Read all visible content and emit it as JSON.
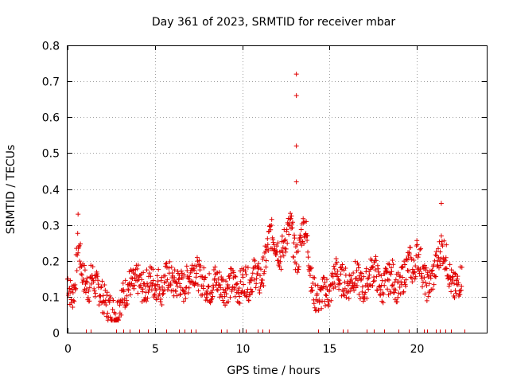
{
  "chart_data": {
    "type": "scatter",
    "title": "Day 361 of 2023, SRMTID for receiver mbar",
    "xlabel": "GPS time / hours",
    "ylabel": "SRMTID / TECUs",
    "xlim": [
      0,
      24
    ],
    "ylim": [
      0,
      0.8
    ],
    "xticks": [
      "0",
      "5",
      "10",
      "15",
      "20"
    ],
    "yticks": [
      "0",
      "0.1",
      "0.2",
      "0.3",
      "0.4",
      "0.5",
      "0.6",
      "0.7",
      "0.8"
    ],
    "grid": true,
    "marker": "+",
    "color": "#e00000",
    "series": [
      {
        "name": "SRMTID",
        "x": [
          0.0,
          0.2,
          0.4,
          0.6,
          0.8,
          1.0,
          1.2,
          1.4,
          1.6,
          1.8,
          2.0,
          2.2,
          2.4,
          2.6,
          2.8,
          3.0,
          3.2,
          3.4,
          3.6,
          3.8,
          4.0,
          4.2,
          4.4,
          4.6,
          4.8,
          5.0,
          5.2,
          5.4,
          5.6,
          5.8,
          6.0,
          6.2,
          6.4,
          6.6,
          6.8,
          7.0,
          7.2,
          7.4,
          7.6,
          7.8,
          8.0,
          8.2,
          8.4,
          8.6,
          8.8,
          9.0,
          9.2,
          9.4,
          9.6,
          9.8,
          10.0,
          10.2,
          10.4,
          10.6,
          10.8,
          11.0,
          11.2,
          11.4,
          11.6,
          11.8,
          12.0,
          12.2,
          12.4,
          12.6,
          12.8,
          13.0,
          13.2,
          13.4,
          13.6,
          13.8,
          14.0,
          14.2,
          14.4,
          14.6,
          14.8,
          15.0,
          15.2,
          15.4,
          15.6,
          15.8,
          16.0,
          16.2,
          16.4,
          16.6,
          16.8,
          17.0,
          17.2,
          17.4,
          17.6,
          17.8,
          18.0,
          18.2,
          18.4,
          18.6,
          18.8,
          19.0,
          19.2,
          19.4,
          19.6,
          19.8,
          20.0,
          20.2,
          20.4,
          20.6,
          20.8,
          21.0,
          21.2,
          21.4,
          21.6,
          21.8,
          22.0,
          22.2,
          22.4,
          22.6
        ],
        "y": [
          0.15,
          0.1,
          0.12,
          0.25,
          0.18,
          0.14,
          0.12,
          0.16,
          0.13,
          0.12,
          0.1,
          0.08,
          0.07,
          0.06,
          0.05,
          0.09,
          0.1,
          0.12,
          0.14,
          0.13,
          0.15,
          0.13,
          0.12,
          0.14,
          0.15,
          0.13,
          0.14,
          0.12,
          0.15,
          0.16,
          0.14,
          0.13,
          0.15,
          0.12,
          0.14,
          0.16,
          0.18,
          0.17,
          0.15,
          0.14,
          0.13,
          0.12,
          0.15,
          0.14,
          0.13,
          0.12,
          0.13,
          0.14,
          0.13,
          0.12,
          0.14,
          0.15,
          0.13,
          0.16,
          0.17,
          0.14,
          0.17,
          0.22,
          0.28,
          0.26,
          0.24,
          0.21,
          0.25,
          0.28,
          0.3,
          0.22,
          0.2,
          0.28,
          0.3,
          0.22,
          0.13,
          0.1,
          0.09,
          0.11,
          0.12,
          0.1,
          0.15,
          0.17,
          0.14,
          0.15,
          0.13,
          0.14,
          0.16,
          0.15,
          0.13,
          0.12,
          0.15,
          0.17,
          0.18,
          0.14,
          0.12,
          0.14,
          0.15,
          0.16,
          0.13,
          0.12,
          0.15,
          0.18,
          0.2,
          0.16,
          0.22,
          0.2,
          0.15,
          0.13,
          0.14,
          0.17,
          0.2,
          0.24,
          0.22,
          0.18,
          0.13,
          0.12,
          0.14,
          0.16
        ],
        "outliers": [
          {
            "x": 0.6,
            "y": 0.33
          },
          {
            "x": 13.1,
            "y": 0.72
          },
          {
            "x": 13.1,
            "y": 0.66
          },
          {
            "x": 13.1,
            "y": 0.52
          },
          {
            "x": 13.1,
            "y": 0.42
          },
          {
            "x": 21.4,
            "y": 0.36
          }
        ]
      }
    ]
  }
}
